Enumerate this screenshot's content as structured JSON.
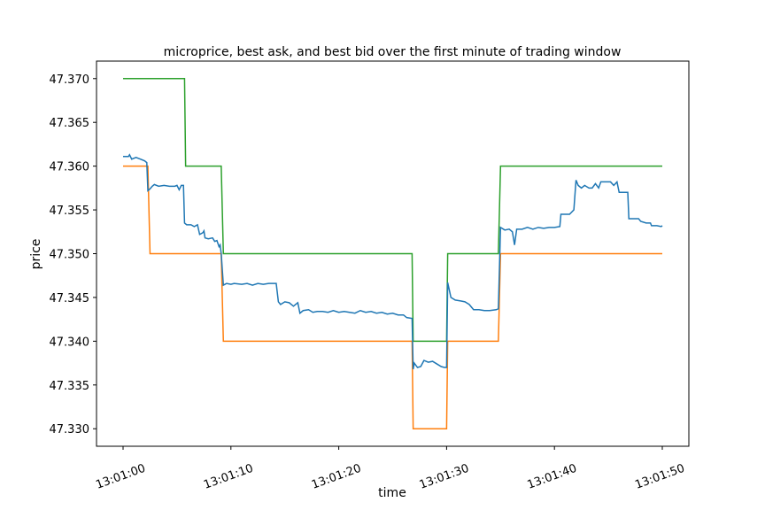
{
  "chart_data": {
    "type": "line",
    "title": "microprice, best ask, and best bid over the first minute of trading window",
    "xlabel": "time",
    "ylabel": "price",
    "xlim": [
      0,
      50
    ],
    "ylim": [
      47.328,
      47.372
    ],
    "x_ticks": [
      {
        "value": 0,
        "label": "13:01:00"
      },
      {
        "value": 10,
        "label": "13:01:10"
      },
      {
        "value": 20,
        "label": "13:01:20"
      },
      {
        "value": 30,
        "label": "13:01:30"
      },
      {
        "value": 40,
        "label": "13:01:40"
      },
      {
        "value": 50,
        "label": "13:01:50"
      }
    ],
    "y_ticks": [
      {
        "value": 47.33,
        "label": "47.330"
      },
      {
        "value": 47.335,
        "label": "47.335"
      },
      {
        "value": 47.34,
        "label": "47.340"
      },
      {
        "value": 47.345,
        "label": "47.345"
      },
      {
        "value": 47.35,
        "label": "47.350"
      },
      {
        "value": 47.355,
        "label": "47.355"
      },
      {
        "value": 47.36,
        "label": "47.360"
      },
      {
        "value": 47.365,
        "label": "47.365"
      },
      {
        "value": 47.37,
        "label": "47.370"
      }
    ],
    "grid": false,
    "series": [
      {
        "key": "best-ask",
        "color": "#2ca02c",
        "points": [
          [
            0,
            47.37
          ],
          [
            5.7,
            47.37
          ],
          [
            5.8,
            47.36
          ],
          [
            9.1,
            47.36
          ],
          [
            9.3,
            47.35
          ],
          [
            26.8,
            47.35
          ],
          [
            26.9,
            47.34
          ],
          [
            30.0,
            47.34
          ],
          [
            30.1,
            47.35
          ],
          [
            34.8,
            47.35
          ],
          [
            35.0,
            47.36
          ],
          [
            50.0,
            47.36
          ]
        ]
      },
      {
        "key": "best-bid",
        "color": "#ff7f0e",
        "points": [
          [
            0,
            47.36
          ],
          [
            2.3,
            47.36
          ],
          [
            2.5,
            47.35
          ],
          [
            9.1,
            47.35
          ],
          [
            9.3,
            47.34
          ],
          [
            26.8,
            47.34
          ],
          [
            26.9,
            47.33
          ],
          [
            30.0,
            47.33
          ],
          [
            30.1,
            47.34
          ],
          [
            34.8,
            47.34
          ],
          [
            35.0,
            47.35
          ],
          [
            50.0,
            47.35
          ]
        ]
      },
      {
        "key": "microprice",
        "color": "#1f77b4",
        "points": [
          [
            0,
            47.3611
          ],
          [
            0.5,
            47.3611
          ],
          [
            0.6,
            47.3613
          ],
          [
            0.8,
            47.3608
          ],
          [
            1.2,
            47.361
          ],
          [
            1.6,
            47.3608
          ],
          [
            2.0,
            47.3606
          ],
          [
            2.2,
            47.3604
          ],
          [
            2.3,
            47.3572
          ],
          [
            2.5,
            47.3574
          ],
          [
            2.7,
            47.3577
          ],
          [
            2.9,
            47.3579
          ],
          [
            3.3,
            47.3577
          ],
          [
            3.8,
            47.3578
          ],
          [
            4.3,
            47.3577
          ],
          [
            4.8,
            47.3577
          ],
          [
            5.0,
            47.3578
          ],
          [
            5.2,
            47.3573
          ],
          [
            5.4,
            47.3578
          ],
          [
            5.6,
            47.3578
          ],
          [
            5.7,
            47.3535
          ],
          [
            5.9,
            47.3533
          ],
          [
            6.3,
            47.3533
          ],
          [
            6.6,
            47.3531
          ],
          [
            6.9,
            47.3533
          ],
          [
            7.1,
            47.3522
          ],
          [
            7.4,
            47.3524
          ],
          [
            7.5,
            47.3526
          ],
          [
            7.6,
            47.3518
          ],
          [
            7.9,
            47.3517
          ],
          [
            8.3,
            47.3518
          ],
          [
            8.5,
            47.3514
          ],
          [
            8.7,
            47.3515
          ],
          [
            8.9,
            47.3508
          ],
          [
            9.0,
            47.351
          ],
          [
            9.1,
            47.35
          ],
          [
            9.3,
            47.3464
          ],
          [
            9.6,
            47.3466
          ],
          [
            10.0,
            47.3465
          ],
          [
            10.3,
            47.3466
          ],
          [
            11.0,
            47.3465
          ],
          [
            11.5,
            47.3466
          ],
          [
            12.0,
            47.3464
          ],
          [
            12.5,
            47.3466
          ],
          [
            13.0,
            47.3465
          ],
          [
            13.5,
            47.3466
          ],
          [
            14.2,
            47.3466
          ],
          [
            14.4,
            47.3445
          ],
          [
            14.6,
            47.3442
          ],
          [
            15.0,
            47.3445
          ],
          [
            15.4,
            47.3444
          ],
          [
            15.8,
            47.344
          ],
          [
            16.2,
            47.3444
          ],
          [
            16.4,
            47.3432
          ],
          [
            16.7,
            47.3435
          ],
          [
            17.2,
            47.3436
          ],
          [
            17.6,
            47.3433
          ],
          [
            18.0,
            47.3434
          ],
          [
            18.5,
            47.3434
          ],
          [
            19.0,
            47.3433
          ],
          [
            19.5,
            47.3435
          ],
          [
            20.0,
            47.3433
          ],
          [
            20.5,
            47.3434
          ],
          [
            21.0,
            47.3433
          ],
          [
            21.5,
            47.3432
          ],
          [
            22.0,
            47.3435
          ],
          [
            22.5,
            47.3433
          ],
          [
            23.0,
            47.3434
          ],
          [
            23.5,
            47.3432
          ],
          [
            24.0,
            47.3433
          ],
          [
            24.5,
            47.3431
          ],
          [
            25.0,
            47.3432
          ],
          [
            25.5,
            47.343
          ],
          [
            26.0,
            47.343
          ],
          [
            26.3,
            47.3427
          ],
          [
            26.8,
            47.3426
          ],
          [
            26.9,
            47.3368
          ],
          [
            27.0,
            47.3375
          ],
          [
            27.3,
            47.337
          ],
          [
            27.6,
            47.3371
          ],
          [
            27.9,
            47.3378
          ],
          [
            28.3,
            47.3376
          ],
          [
            28.7,
            47.3377
          ],
          [
            29.1,
            47.3374
          ],
          [
            29.5,
            47.3371
          ],
          [
            29.8,
            47.337
          ],
          [
            30.0,
            47.337
          ],
          [
            30.1,
            47.3467
          ],
          [
            30.4,
            47.345
          ],
          [
            30.8,
            47.3447
          ],
          [
            31.3,
            47.3446
          ],
          [
            31.7,
            47.3445
          ],
          [
            32.1,
            47.3442
          ],
          [
            32.5,
            47.3436
          ],
          [
            33.0,
            47.3436
          ],
          [
            33.5,
            47.3435
          ],
          [
            34.0,
            47.3435
          ],
          [
            34.6,
            47.3436
          ],
          [
            34.8,
            47.3437
          ],
          [
            35.0,
            47.353
          ],
          [
            35.4,
            47.3527
          ],
          [
            35.8,
            47.3528
          ],
          [
            36.1,
            47.3525
          ],
          [
            36.3,
            47.351
          ],
          [
            36.5,
            47.3528
          ],
          [
            37.0,
            47.3528
          ],
          [
            37.5,
            47.353
          ],
          [
            38.0,
            47.3528
          ],
          [
            38.5,
            47.353
          ],
          [
            39.0,
            47.3529
          ],
          [
            39.5,
            47.353
          ],
          [
            40.0,
            47.353
          ],
          [
            40.5,
            47.3531
          ],
          [
            40.6,
            47.3545
          ],
          [
            41.0,
            47.3545
          ],
          [
            41.4,
            47.3545
          ],
          [
            41.8,
            47.355
          ],
          [
            42.0,
            47.3584
          ],
          [
            42.2,
            47.3578
          ],
          [
            42.5,
            47.3575
          ],
          [
            42.8,
            47.3578
          ],
          [
            43.2,
            47.3575
          ],
          [
            43.5,
            47.3575
          ],
          [
            43.8,
            47.358
          ],
          [
            44.1,
            47.3575
          ],
          [
            44.3,
            47.3582
          ],
          [
            44.8,
            47.3582
          ],
          [
            45.2,
            47.3582
          ],
          [
            45.5,
            47.3578
          ],
          [
            45.8,
            47.3582
          ],
          [
            46.0,
            47.357
          ],
          [
            46.4,
            47.357
          ],
          [
            46.8,
            47.357
          ],
          [
            46.9,
            47.354
          ],
          [
            47.3,
            47.354
          ],
          [
            47.8,
            47.354
          ],
          [
            48.0,
            47.3537
          ],
          [
            48.5,
            47.3535
          ],
          [
            48.9,
            47.3535
          ],
          [
            49.0,
            47.3532
          ],
          [
            49.5,
            47.3532
          ],
          [
            49.9,
            47.3531
          ],
          [
            50.0,
            47.3532
          ]
        ]
      }
    ]
  }
}
